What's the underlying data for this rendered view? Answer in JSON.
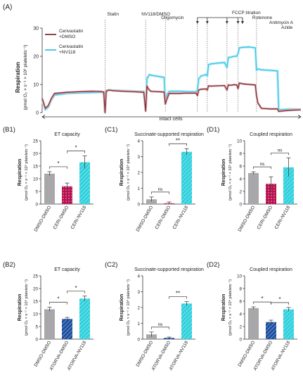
{
  "colors": {
    "dmso": "#8b2d36",
    "nv118": "#3cc5e6",
    "nv118_band": "#b8eaf5",
    "grey": "#a8a8aa",
    "ceri": "#b5124f",
    "atorva": "#1f4e9b",
    "nvbar": "#2fd0dc",
    "axis": "#333333"
  },
  "panel_a": {
    "label": "(A)",
    "ylabel1": "Respiration",
    "ylabel2": "(pmol O₂ × s⁻¹ × 10⁶ platelets⁻¹)",
    "footer": "Intact cells",
    "legend": [
      {
        "text1": "Cerivastatin",
        "text2": "+DMSO",
        "series": "dmso"
      },
      {
        "text1": "Cerivastatin",
        "text2": "+NV118",
        "series": "nv118"
      }
    ],
    "annotations": [
      "Statin",
      "NV118/DMSO",
      "Oligomycin",
      "FCCP titration",
      "Rotenone",
      "Antimycin A",
      "Azide"
    ]
  },
  "chart_data": [
    {
      "id": "A",
      "type": "line",
      "xlim": [
        0,
        420
      ],
      "ylim": [
        0,
        30
      ],
      "yticks": [
        0,
        10,
        20,
        30
      ],
      "event_times": [
        102,
        168,
        200,
        252,
        268,
        300,
        318,
        348
      ],
      "series": [
        {
          "name": "Cerivastatin +DMSO",
          "key": "dmso",
          "x": [
            0,
            3,
            5,
            10,
            15,
            20,
            40,
            60,
            80,
            95,
            100,
            102,
            104,
            108,
            115,
            130,
            150,
            165,
            168,
            170,
            172,
            176,
            180,
            190,
            198,
            200,
            202,
            206,
            212,
            222,
            232,
            240,
            250,
            252,
            254,
            258,
            266,
            268,
            270,
            274,
            282,
            296,
            300,
            302,
            306,
            312,
            316,
            318,
            320,
            326,
            336,
            346,
            348,
            350,
            356,
            370,
            382,
            384,
            400,
            420
          ],
          "y": [
            5,
            3,
            1.5,
            2.5,
            5,
            6.8,
            7.2,
            7.4,
            7.6,
            7.5,
            7.3,
            0,
            7.6,
            8,
            7.8,
            7.6,
            7.4,
            7.2,
            0.5,
            9.5,
            8.5,
            7.6,
            7.5,
            7.4,
            7.3,
            3,
            4.5,
            6.8,
            6.8,
            6.8,
            6.9,
            6.9,
            6.9,
            6,
            8,
            8.3,
            8.4,
            8,
            9.5,
            9.4,
            9.5,
            9.6,
            8,
            9.8,
            9.7,
            9.9,
            9.8,
            8.5,
            10.5,
            10.2,
            10,
            9.8,
            6,
            3.5,
            1.5,
            1.3,
            1.3,
            0.4,
            0.8,
            1
          ]
        },
        {
          "name": "Cerivastatin +NV118",
          "key": "nv118",
          "x": [
            0,
            3,
            5,
            10,
            15,
            20,
            40,
            60,
            80,
            95,
            100,
            102,
            104,
            108,
            115,
            130,
            150,
            165,
            168,
            170,
            174,
            178,
            185,
            190,
            198,
            200,
            202,
            206,
            212,
            222,
            232,
            240,
            250,
            252,
            254,
            258,
            266,
            268,
            270,
            274,
            282,
            296,
            300,
            302,
            306,
            312,
            316,
            318,
            320,
            326,
            336,
            346,
            348,
            350,
            356,
            370,
            382,
            384,
            400,
            420
          ],
          "y": [
            4.5,
            2.5,
            1,
            2,
            4.5,
            6.2,
            6.8,
            7,
            7.1,
            7.2,
            7,
            0,
            7.8,
            8,
            7.9,
            7.8,
            7.6,
            7.5,
            0.8,
            12,
            13.5,
            13.2,
            13,
            12.8,
            12.5,
            4,
            6.2,
            7.5,
            7.6,
            7.6,
            7.5,
            7.4,
            7.4,
            8,
            12,
            13,
            13.5,
            13,
            17,
            17.3,
            17.5,
            17.8,
            16,
            19.5,
            19.7,
            20,
            20,
            21,
            23,
            23.2,
            23.3,
            23,
            15,
            15.5,
            15.2,
            15,
            14.8,
            1,
            1.2,
            1.2
          ]
        }
      ]
    },
    {
      "id": "B1",
      "type": "bar",
      "title": "ET capacity",
      "ylabel": "Respiration",
      "ylim": [
        0,
        25
      ],
      "yticks": [
        0,
        5,
        10,
        15,
        20,
        25
      ],
      "categories": [
        "DMSO-DMSO",
        "CERI-DMSO",
        "CERI-NV118"
      ],
      "values": [
        12,
        7,
        16.5
      ],
      "errors": [
        0.8,
        1.3,
        2.5
      ],
      "brackets": [
        {
          "from": 0,
          "to": 1,
          "label": "*"
        },
        {
          "from": 1,
          "to": 2,
          "label": "*"
        }
      ]
    },
    {
      "id": "C1",
      "type": "bar",
      "title": "Succinate-supported respiration",
      "ylabel": "Respiration",
      "ylim": [
        0,
        4
      ],
      "yticks": [
        0,
        1,
        2,
        3,
        4
      ],
      "categories": [
        "DMSO-DMSO",
        "CERI-DMSO",
        "CERI-NV118"
      ],
      "values": [
        0.3,
        0.05,
        3.3
      ],
      "errors": [
        0.15,
        0.08,
        0.2
      ],
      "brackets": [
        {
          "from": 0,
          "to": 1,
          "label": "ns"
        },
        {
          "from": 1,
          "to": 2,
          "label": "**"
        }
      ]
    },
    {
      "id": "D1",
      "type": "bar",
      "title": "Coupled respiration",
      "ylabel": "Respiration",
      "ylim": [
        0,
        10
      ],
      "yticks": [
        0,
        2,
        4,
        6,
        8,
        10
      ],
      "categories": [
        "DMSO-DMSO",
        "CERI-DMSO",
        "CERI-NV118"
      ],
      "values": [
        4.9,
        3.2,
        5.8
      ],
      "errors": [
        0.2,
        1.1,
        1.5
      ],
      "brackets": [
        {
          "from": 0,
          "to": 1,
          "label": "ns"
        },
        {
          "from": 1,
          "to": 2,
          "label": "ns"
        }
      ]
    },
    {
      "id": "B2",
      "type": "bar",
      "title": "ET capacity",
      "ylabel": "Respiration",
      "ylim": [
        0,
        25
      ],
      "yticks": [
        0,
        5,
        10,
        15,
        20,
        25
      ],
      "categories": [
        "DMSO-DMSO",
        "ATORVA-DMSO",
        "ATORVA-NV118"
      ],
      "values": [
        11.8,
        8,
        16
      ],
      "errors": [
        0.8,
        0.6,
        1
      ],
      "brackets": [
        {
          "from": 0,
          "to": 1,
          "label": "*"
        },
        {
          "from": 1,
          "to": 2,
          "label": "*"
        }
      ]
    },
    {
      "id": "C2",
      "type": "bar",
      "title": "Succinate-supported respiration",
      "ylabel": "Respiration",
      "ylim": [
        0,
        4
      ],
      "yticks": [
        0,
        1,
        2,
        3,
        4
      ],
      "categories": [
        "DMSO-DMSO",
        "ATORVA-DMSO",
        "ATORVA-NV118"
      ],
      "values": [
        0.3,
        0.08,
        2.25
      ],
      "errors": [
        0.15,
        0.05,
        0.12
      ],
      "brackets": [
        {
          "from": 0,
          "to": 1,
          "label": "ns"
        },
        {
          "from": 1,
          "to": 2,
          "label": "**"
        }
      ]
    },
    {
      "id": "D2",
      "type": "bar",
      "title": "Coupled respiration",
      "ylabel": "Respiration",
      "ylim": [
        0,
        10
      ],
      "yticks": [
        0,
        2,
        4,
        6,
        8,
        10
      ],
      "categories": [
        "DMSO-DMSO",
        "ATORVA-DMSO",
        "ATORVA-NV118"
      ],
      "values": [
        4.9,
        2.7,
        4.7
      ],
      "errors": [
        0.2,
        0.3,
        0.3
      ],
      "brackets": [
        {
          "from": 0,
          "to": 1,
          "label": "*"
        },
        {
          "from": 1,
          "to": 2,
          "label": "*"
        }
      ]
    }
  ],
  "bar_panels": [
    {
      "label": "(B1)",
      "ylabel": "Respiration",
      "unit": "(pmol O₂ × s⁻¹ × 10⁶ platelets⁻¹)",
      "fills": [
        "grey",
        "ceri",
        "nvbar"
      ],
      "hatch": [
        false,
        true,
        true
      ]
    },
    {
      "label": "(C1)",
      "ylabel": "Respiration",
      "unit": "(pmol O₂ × s⁻¹ × 10⁶ platelets⁻¹)",
      "fills": [
        "grey",
        "ceri",
        "nvbar"
      ],
      "hatch": [
        false,
        true,
        true
      ]
    },
    {
      "label": "(D1)",
      "ylabel": "Respiration",
      "unit": "(pmol O₂ × s⁻¹ × 10⁶ platelets⁻¹)",
      "fills": [
        "grey",
        "ceri",
        "nvbar"
      ],
      "hatch": [
        false,
        true,
        true
      ]
    },
    {
      "label": "(B2)",
      "ylabel": "Respiration",
      "unit": "(pmol O₂ × s⁻¹ × 10⁶ platelets⁻¹)",
      "fills": [
        "grey",
        "atorva",
        "nvbar"
      ],
      "hatch": [
        false,
        true,
        true
      ]
    },
    {
      "label": "(C2)",
      "ylabel": "Respiration",
      "unit": "(pmol O₂ × s⁻¹ × 10⁶ platelets⁻¹)",
      "fills": [
        "grey",
        "atorva",
        "nvbar"
      ],
      "hatch": [
        false,
        true,
        true
      ]
    },
    {
      "label": "(D2)",
      "ylabel": "Respiration",
      "unit": "(pmol O₂ × s⁻¹ × 10⁶ platelets⁻¹)",
      "fills": [
        "grey",
        "atorva",
        "nvbar"
      ],
      "hatch": [
        false,
        true,
        true
      ]
    }
  ]
}
